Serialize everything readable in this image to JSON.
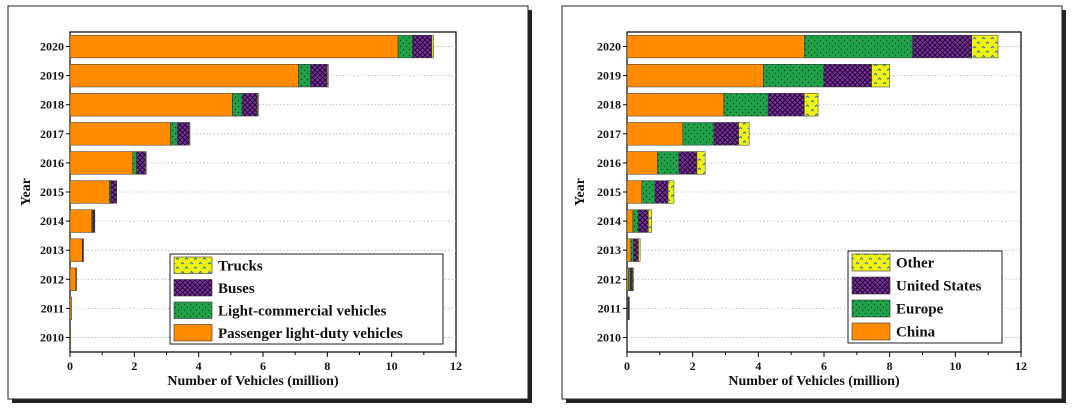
{
  "chart_data": [
    {
      "type": "bar",
      "orientation": "horizontal",
      "stacked": true,
      "categories": [
        "2010",
        "2011",
        "2012",
        "2013",
        "2014",
        "2015",
        "2016",
        "2017",
        "2018",
        "2019",
        "2020"
      ],
      "series": [
        {
          "name": "Passenger light-duty vehicles",
          "color": "#ff8c00",
          "pattern": "solid",
          "values": [
            0.02,
            0.05,
            0.18,
            0.38,
            0.68,
            1.22,
            1.95,
            3.12,
            5.05,
            7.1,
            10.2
          ]
        },
        {
          "name": "Light-commercial vehicles",
          "color": "#1fa34a",
          "pattern": "dots",
          "values": [
            0.0,
            0.0,
            0.01,
            0.02,
            0.03,
            0.05,
            0.12,
            0.22,
            0.3,
            0.38,
            0.45
          ]
        },
        {
          "name": "Buses",
          "color": "#7b2fa0",
          "pattern": "hatch",
          "values": [
            0.0,
            0.0,
            0.01,
            0.02,
            0.05,
            0.17,
            0.28,
            0.37,
            0.48,
            0.52,
            0.6
          ]
        },
        {
          "name": "Trucks",
          "color": "#f2f20a",
          "pattern": "zigzag",
          "values": [
            0.0,
            0.0,
            0.0,
            0.0,
            0.01,
            0.01,
            0.02,
            0.02,
            0.03,
            0.03,
            0.05
          ]
        }
      ],
      "xlabel": "Number of Vehicles (million)",
      "ylabel": "Year",
      "xlim": [
        0,
        12
      ],
      "xticks": [
        "0",
        "2",
        "4",
        "6",
        "8",
        "10",
        "12"
      ],
      "grid": "horizontal dotted",
      "legend_position": "bottom-right",
      "legend_order": [
        "Trucks",
        "Buses",
        "Light-commercial vehicles",
        "Passenger light-duty vehicles"
      ]
    },
    {
      "type": "bar",
      "orientation": "horizontal",
      "stacked": true,
      "categories": [
        "2010",
        "2011",
        "2012",
        "2013",
        "2014",
        "2015",
        "2016",
        "2017",
        "2018",
        "2019",
        "2020"
      ],
      "series": [
        {
          "name": "China",
          "color": "#ff8c00",
          "pattern": "solid",
          "values": [
            0.01,
            0.02,
            0.05,
            0.12,
            0.18,
            0.45,
            0.93,
            1.7,
            2.95,
            4.15,
            5.4
          ]
        },
        {
          "name": "Europe",
          "color": "#1fa34a",
          "pattern": "dots",
          "values": [
            0.0,
            0.02,
            0.05,
            0.08,
            0.17,
            0.4,
            0.65,
            0.95,
            1.35,
            1.85,
            3.3
          ]
        },
        {
          "name": "United States",
          "color": "#7b2fa0",
          "pattern": "hatch",
          "values": [
            0.0,
            0.02,
            0.07,
            0.15,
            0.3,
            0.4,
            0.55,
            0.75,
            1.1,
            1.45,
            1.8
          ]
        },
        {
          "name": "Other",
          "color": "#f2f20a",
          "pattern": "zigzag",
          "values": [
            0.0,
            0.01,
            0.03,
            0.05,
            0.1,
            0.18,
            0.25,
            0.32,
            0.42,
            0.55,
            0.8
          ]
        }
      ],
      "xlabel": "Number of Vehicles (million)",
      "ylabel": "Year",
      "xlim": [
        0,
        12
      ],
      "xticks": [
        "0",
        "2",
        "4",
        "6",
        "8",
        "10",
        "12"
      ],
      "grid": "horizontal dotted",
      "legend_position": "bottom-right",
      "legend_order": [
        "Other",
        "United States",
        "Europe",
        "China"
      ]
    }
  ]
}
